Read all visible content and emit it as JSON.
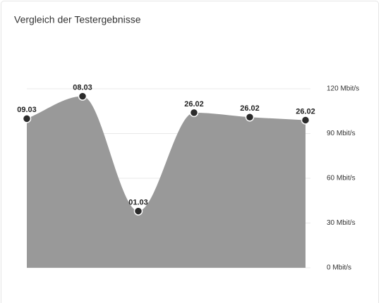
{
  "chart_data": {
    "type": "area",
    "title": "Vergleich der Testergebnisse",
    "categories": [
      "09.03",
      "08.03",
      "01.03",
      "26.02",
      "26.02",
      "26.02"
    ],
    "values": [
      100,
      115,
      38,
      104,
      101,
      99
    ],
    "color": "#999999",
    "point_color": "#2b2b2b",
    "ylim": [
      0,
      120
    ],
    "yticks": [
      {
        "value": 0,
        "label": "0 Mbit/s"
      },
      {
        "value": 30,
        "label": "30 Mbit/s"
      },
      {
        "value": 60,
        "label": "60 Mbit/s"
      },
      {
        "value": 90,
        "label": "90 Mbit/s"
      },
      {
        "value": 120,
        "label": "120 Mbit/s"
      }
    ],
    "grid": true
  }
}
